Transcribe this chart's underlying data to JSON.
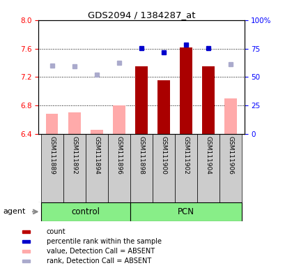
{
  "title": "GDS2094 / 1384287_at",
  "samples": [
    "GSM111889",
    "GSM111892",
    "GSM111894",
    "GSM111896",
    "GSM111898",
    "GSM111900",
    "GSM111902",
    "GSM111904",
    "GSM111906"
  ],
  "bar_values": [
    6.68,
    6.7,
    6.46,
    6.8,
    7.35,
    7.15,
    7.62,
    7.35,
    6.9
  ],
  "bar_colors": [
    "#ffaaaa",
    "#ffaaaa",
    "#ffaaaa",
    "#ffaaaa",
    "#aa0000",
    "#aa0000",
    "#aa0000",
    "#aa0000",
    "#ffaaaa"
  ],
  "rank_dots_indices": [
    4,
    5,
    6,
    7
  ],
  "rank_dots_values": [
    7.61,
    7.55,
    7.65,
    7.61
  ],
  "absent_rank_indices": [
    0,
    1,
    2,
    3,
    8
  ],
  "absent_rank_values": [
    7.36,
    7.35,
    7.23,
    7.4,
    7.38
  ],
  "ylim_left": [
    6.4,
    8.0
  ],
  "ylim_right": [
    0,
    100
  ],
  "yticks_left": [
    6.4,
    6.8,
    7.2,
    7.6,
    8.0
  ],
  "yticks_right": [
    0,
    25,
    50,
    75,
    100
  ],
  "ytick_labels_right": [
    "0",
    "25",
    "50",
    "75",
    "100%"
  ],
  "legend_items": [
    {
      "label": "count",
      "color": "#bb0000"
    },
    {
      "label": "percentile rank within the sample",
      "color": "#0000cc"
    },
    {
      "label": "value, Detection Call = ABSENT",
      "color": "#ffaaaa"
    },
    {
      "label": "rank, Detection Call = ABSENT",
      "color": "#aaaacc"
    }
  ],
  "group_label_control": "control",
  "group_label_pcn": "PCN",
  "agent_label": "agent",
  "bar_width": 0.55,
  "dot_color_present": "#0000cc",
  "dot_color_absent": "#aaaacc",
  "grid_color": "black",
  "label_area_color": "#88ee88",
  "label_area_border": "black",
  "sample_box_color": "#cccccc",
  "control_n": 4,
  "pcn_n": 5
}
